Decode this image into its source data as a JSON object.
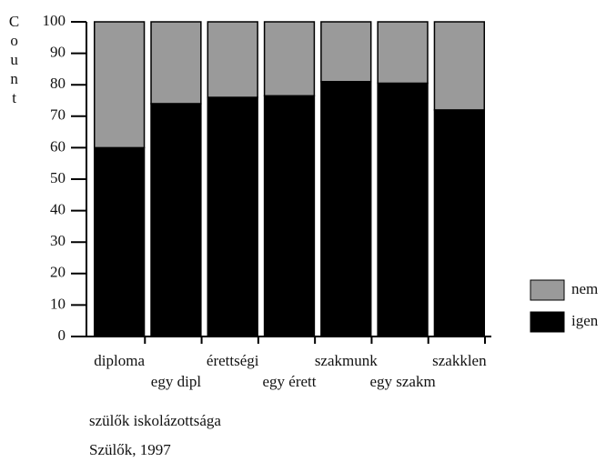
{
  "chart_data": {
    "type": "stacked_bar",
    "categories": [
      "diploma",
      "egy dipl",
      "érettségi",
      "egy érett",
      "szakmunk",
      "egy szakm",
      "szakklen"
    ],
    "series": [
      {
        "name": "igen",
        "color": "#000000",
        "values": [
          60,
          74,
          76,
          76.5,
          81,
          80.5,
          72
        ]
      },
      {
        "name": "nem",
        "color": "#9a9a9a",
        "values": [
          40,
          26,
          24,
          23.5,
          19,
          19.5,
          28
        ]
      }
    ],
    "y_label": "Count",
    "x_label": "szülők iskolázottsága",
    "footnote": "Szülők, 1997",
    "ylim": [
      0,
      100
    ],
    "yticks": [
      0,
      10,
      20,
      30,
      40,
      50,
      60,
      70,
      80,
      90,
      100
    ]
  }
}
